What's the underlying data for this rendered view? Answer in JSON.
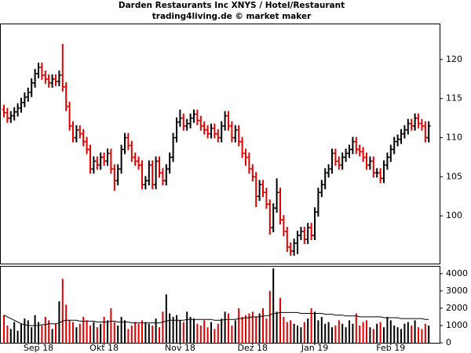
{
  "chart_data": [
    {
      "type": "ohlc",
      "title": "Darden Restaurants Inc XNYS / Hotel/Restaurant",
      "subtitle": "trading4living.de © market maker",
      "up_color": "#000000",
      "down_color": "#e00000",
      "open": [
        113.6,
        113.2,
        112.5,
        112.8,
        113.3,
        113.8,
        114.5,
        115.2,
        115.8,
        117,
        118.2,
        119,
        118,
        117.5,
        117,
        117.5,
        117.2,
        118,
        116.5,
        114,
        111.5,
        110,
        111,
        110.5,
        109.5,
        108.5,
        106,
        107,
        106.5,
        107.5,
        107,
        108,
        106,
        104.5,
        106,
        108.5,
        110,
        109,
        107.5,
        107,
        106.5,
        104,
        104.5,
        106.5,
        104,
        107,
        105.5,
        104.5,
        106,
        107.5,
        110,
        112,
        112.5,
        111.5,
        111.8,
        112.5,
        113,
        112.2,
        111.5,
        111,
        110.5,
        111.2,
        110.5,
        110,
        111.5,
        112.8,
        111.5,
        110,
        111,
        109.5,
        108,
        107.5,
        106,
        105,
        102.5,
        104,
        103,
        101.5,
        98.5,
        101,
        103,
        99.5,
        98,
        96,
        95.5,
        96.5,
        97.5,
        98,
        97,
        98.5,
        97.5,
        100.5,
        103,
        104,
        105.5,
        106,
        108,
        107,
        106.5,
        107.5,
        108,
        108.5,
        109.5,
        108.5,
        108.2,
        107.5,
        106.5,
        107,
        105.5,
        105.5,
        104.8,
        106.5,
        107.5,
        108.5,
        109.5,
        109.8,
        110.5,
        111,
        111.8,
        111.5,
        112.5,
        111.8,
        111.5,
        110
      ],
      "high": [
        114.2,
        113.8,
        113.4,
        113.9,
        114.4,
        115.1,
        115.8,
        116.4,
        117.6,
        118.8,
        119.6,
        119.6,
        118.6,
        118.1,
        118.1,
        118.1,
        118.6,
        122,
        117.1,
        114.6,
        112.1,
        111.6,
        111.6,
        111.1,
        110.1,
        109.1,
        107.6,
        107.6,
        108.1,
        108.1,
        108.6,
        108.6,
        106.6,
        106.6,
        109.1,
        110.6,
        110.6,
        109.6,
        108.1,
        107.6,
        107.1,
        105.1,
        107.1,
        107.1,
        107.6,
        107.6,
        106.1,
        106.6,
        108.1,
        110.6,
        112.6,
        113.6,
        113.1,
        112.4,
        113.1,
        113.6,
        113.6,
        112.8,
        112.1,
        111.6,
        111.8,
        111.8,
        111.1,
        112.1,
        113.4,
        113.4,
        112.1,
        111.6,
        111.6,
        110.1,
        108.6,
        108.1,
        106.6,
        105.6,
        104.6,
        104.6,
        103.6,
        102.1,
        101.6,
        104.8,
        103.6,
        100.1,
        98.6,
        96.6,
        97.1,
        98.1,
        98.6,
        98.6,
        99.1,
        99.1,
        101.1,
        103.6,
        104.6,
        106.1,
        106.6,
        108.6,
        108.6,
        107.6,
        108.1,
        108.6,
        109.1,
        110.1,
        110.1,
        109.1,
        108.8,
        108.1,
        107.6,
        107.6,
        106.1,
        106.1,
        107.1,
        108.1,
        109.1,
        110.1,
        110.4,
        111.1,
        111.6,
        112.4,
        112.4,
        113.1,
        113.1,
        112.4,
        112.1,
        112.1
      ],
      "low": [
        112.6,
        111.9,
        111.9,
        112.2,
        112.7,
        113.2,
        113.9,
        114.6,
        115.2,
        116.4,
        117.6,
        117.4,
        116.9,
        116.4,
        116.4,
        116.6,
        116.6,
        115.9,
        113.4,
        110.9,
        109.4,
        109.4,
        109.9,
        108.9,
        107.9,
        105.4,
        105.4,
        105.9,
        105.9,
        106.4,
        106.4,
        105.4,
        103.2,
        103.9,
        105.4,
        107.9,
        108.4,
        106.9,
        106.4,
        105.9,
        103.4,
        103.4,
        103.9,
        103.4,
        103.4,
        104.9,
        103.9,
        103.9,
        105.4,
        106.9,
        109.4,
        111.4,
        110.9,
        110.9,
        111.2,
        111.9,
        111.6,
        110.9,
        110.4,
        109.9,
        109.9,
        109.9,
        109.4,
        109.4,
        110.9,
        110.9,
        109.4,
        109.4,
        108.9,
        107.4,
        106.4,
        105.4,
        104.4,
        101.1,
        101.9,
        102.4,
        100.9,
        97.6,
        97.9,
        100.4,
        98.9,
        97.4,
        95.4,
        94.9,
        94.9,
        95.1,
        96.9,
        96.4,
        96.4,
        96.9,
        96.9,
        99.9,
        102.4,
        103.4,
        104.9,
        105.4,
        106.4,
        105.9,
        105.9,
        106.9,
        107.4,
        107.9,
        107.9,
        107.6,
        106.9,
        105.9,
        105.9,
        104.9,
        104.9,
        104.2,
        104.2,
        105.9,
        106.9,
        107.9,
        108.9,
        109.2,
        109.9,
        110.4,
        110.9,
        110.9,
        111.2,
        110.9,
        109.4,
        109.4
      ],
      "close": [
        113.2,
        112.5,
        112.8,
        113.3,
        113.8,
        114.5,
        115.2,
        115.8,
        117,
        118.2,
        119,
        118,
        117.5,
        117,
        117.5,
        117.2,
        118,
        116.5,
        114,
        111.5,
        110,
        111,
        110.5,
        109.5,
        108.5,
        106,
        107,
        106.5,
        107.5,
        107,
        108,
        106,
        104.5,
        106,
        108.5,
        110,
        109,
        107.5,
        107,
        106.5,
        104,
        104.5,
        106.5,
        104,
        107,
        105.5,
        104.5,
        106,
        107.5,
        110,
        112,
        112.5,
        111.5,
        111.8,
        112.5,
        113,
        112.2,
        111.5,
        111,
        110.5,
        111.2,
        110.5,
        110,
        111.5,
        112.8,
        111.5,
        110,
        111,
        109.5,
        108,
        107.5,
        106,
        105,
        102.5,
        104,
        103,
        101.5,
        98.5,
        101,
        103,
        99.5,
        98,
        96,
        95.5,
        96.5,
        97.5,
        98,
        97,
        98.5,
        97.5,
        100.5,
        103,
        104,
        105.5,
        106,
        108,
        107,
        106.5,
        107.5,
        108,
        108.5,
        109.5,
        108.5,
        108.2,
        107.5,
        106.5,
        107,
        105.5,
        105.5,
        104.8,
        106.5,
        107.5,
        108.5,
        109.5,
        109.8,
        110.5,
        111,
        111.8,
        111.5,
        112.5,
        111.8,
        111.5,
        110,
        111.5
      ],
      "ylim": [
        93.9,
        124.5
      ],
      "yticks": [
        100,
        105,
        110,
        115,
        120
      ]
    },
    {
      "type": "bar",
      "categories": [
        null,
        null,
        null,
        null,
        null,
        null,
        null,
        null,
        null,
        null,
        "Sep 18",
        null,
        null,
        null,
        null,
        null,
        null,
        null,
        null,
        null,
        null,
        null,
        null,
        null,
        null,
        null,
        null,
        null,
        null,
        "Okt 18",
        null,
        null,
        null,
        null,
        null,
        null,
        null,
        null,
        null,
        null,
        null,
        null,
        null,
        null,
        null,
        null,
        null,
        null,
        null,
        null,
        null,
        "Nov 18",
        null,
        null,
        null,
        null,
        null,
        null,
        null,
        null,
        null,
        null,
        null,
        null,
        null,
        null,
        null,
        null,
        null,
        null,
        null,
        null,
        "Dez 18",
        null,
        null,
        null,
        null,
        null,
        null,
        null,
        null,
        null,
        null,
        null,
        null,
        null,
        null,
        null,
        null,
        null,
        "Jan 19",
        null,
        null,
        null,
        null,
        null,
        null,
        null,
        null,
        null,
        null,
        null,
        null,
        null,
        null,
        null,
        null,
        null,
        null,
        null,
        null,
        null,
        "Feb 19",
        null,
        null,
        null,
        null,
        null,
        null,
        null,
        null,
        null,
        null,
        null
      ],
      "values": [
        1600,
        1000,
        800,
        1200,
        700,
        1100,
        1400,
        1300,
        900,
        1600,
        1200,
        1000,
        1500,
        1300,
        800,
        1100,
        2400,
        3700,
        2200,
        1300,
        1200,
        900,
        1100,
        1500,
        1300,
        1000,
        1200,
        900,
        1100,
        1500,
        1300,
        2000,
        1200,
        1000,
        1500,
        1300,
        800,
        1000,
        1200,
        1100,
        1300,
        1200,
        1100,
        1000,
        1400,
        900,
        1800,
        2800,
        1700,
        1500,
        1600,
        1300,
        1200,
        1800,
        1500,
        1400,
        1100,
        1000,
        1300,
        900,
        1200,
        800,
        1100,
        1400,
        1800,
        1700,
        1000,
        1300,
        2000,
        1500,
        1600,
        1700,
        1800,
        1500,
        1700,
        2000,
        1400,
        3000,
        4300,
        1800,
        2600,
        1500,
        1200,
        1300,
        1100,
        1000,
        900,
        1200,
        1400,
        2000,
        1800,
        1300,
        1500,
        1100,
        1200,
        900,
        1000,
        1300,
        1100,
        900,
        1300,
        1100,
        1700,
        1000,
        1200,
        1300,
        900,
        800,
        1100,
        1200,
        900,
        1500,
        1300,
        1000,
        900,
        800,
        1100,
        1200,
        1000,
        1300,
        900,
        800,
        1100,
        1000
      ],
      "average": {
        "color": "#000000",
        "values": [
          1600,
          1500,
          1400,
          1300,
          1200,
          1100,
          1050,
          1000,
          1000,
          1000,
          1000,
          1050,
          1050,
          1100,
          1100,
          1100,
          1150,
          1250,
          1300,
          1300,
          1300,
          1300,
          1250,
          1250,
          1250,
          1250,
          1250,
          1200,
          1200,
          1200,
          1200,
          1250,
          1250,
          1200,
          1200,
          1200,
          1200,
          1150,
          1150,
          1150,
          1150,
          1150,
          1150,
          1150,
          1150,
          1150,
          1200,
          1250,
          1300,
          1300,
          1300,
          1300,
          1300,
          1350,
          1350,
          1350,
          1350,
          1350,
          1350,
          1350,
          1350,
          1300,
          1300,
          1300,
          1350,
          1350,
          1350,
          1350,
          1400,
          1400,
          1450,
          1450,
          1500,
          1500,
          1500,
          1550,
          1550,
          1600,
          1700,
          1700,
          1750,
          1750,
          1750,
          1750,
          1750,
          1750,
          1700,
          1700,
          1700,
          1700,
          1700,
          1700,
          1700,
          1650,
          1650,
          1650,
          1600,
          1600,
          1600,
          1550,
          1550,
          1550,
          1550,
          1500,
          1500,
          1500,
          1500,
          1500,
          1500,
          1500,
          1450,
          1450,
          1450,
          1450,
          1450,
          1400,
          1400,
          1400,
          1400,
          1400,
          1400,
          1400,
          1350,
          1350
        ]
      },
      "ylim": [
        0,
        4400
      ],
      "yticks": [
        0,
        1000,
        2000,
        3000,
        4000
      ]
    }
  ]
}
